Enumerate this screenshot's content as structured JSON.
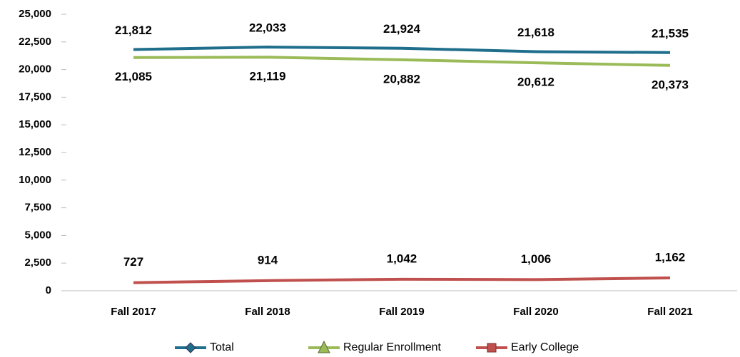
{
  "chart_data": {
    "type": "line",
    "categories": [
      "Fall 2017",
      "Fall 2018",
      "Fall 2019",
      "Fall 2020",
      "Fall 2021"
    ],
    "series": [
      {
        "name": "Total",
        "color": "#1f6e8c",
        "values": [
          21812,
          22033,
          21924,
          21618,
          21535
        ],
        "value_labels": [
          "21,812",
          "22,033",
          "21,924",
          "21,618",
          "21,535"
        ],
        "marker": "diamond"
      },
      {
        "name": "Regular Enrollment",
        "color": "#9bbb59",
        "values": [
          21085,
          21119,
          20882,
          20612,
          20373
        ],
        "value_labels": [
          "21,085",
          "21,119",
          "20,882",
          "20,612",
          "20,373"
        ],
        "marker": "triangle"
      },
      {
        "name": "Early College",
        "color": "#c0504d",
        "values": [
          727,
          914,
          1042,
          1006,
          1162
        ],
        "value_labels": [
          "727",
          "914",
          "1,042",
          "1,006",
          "1,162"
        ],
        "marker": "square"
      }
    ],
    "ylim": [
      0,
      25000
    ],
    "yticks": [
      0,
      {
        "value": 2500,
        "label": "2,500"
      },
      {
        "value": 5000,
        "label": "5,000"
      },
      {
        "value": 7500,
        "label": "7,500"
      },
      {
        "value": 10000,
        "label": "10,000"
      },
      {
        "value": 12500,
        "label": "12,500"
      },
      {
        "value": 15000,
        "label": "15,000"
      },
      {
        "value": 17500,
        "label": "17,500"
      },
      {
        "value": 20000,
        "label": "20,000"
      },
      {
        "value": 22500,
        "label": "22,500"
      },
      {
        "value": 25000,
        "label": "25,000"
      }
    ],
    "legend": "bottom"
  }
}
